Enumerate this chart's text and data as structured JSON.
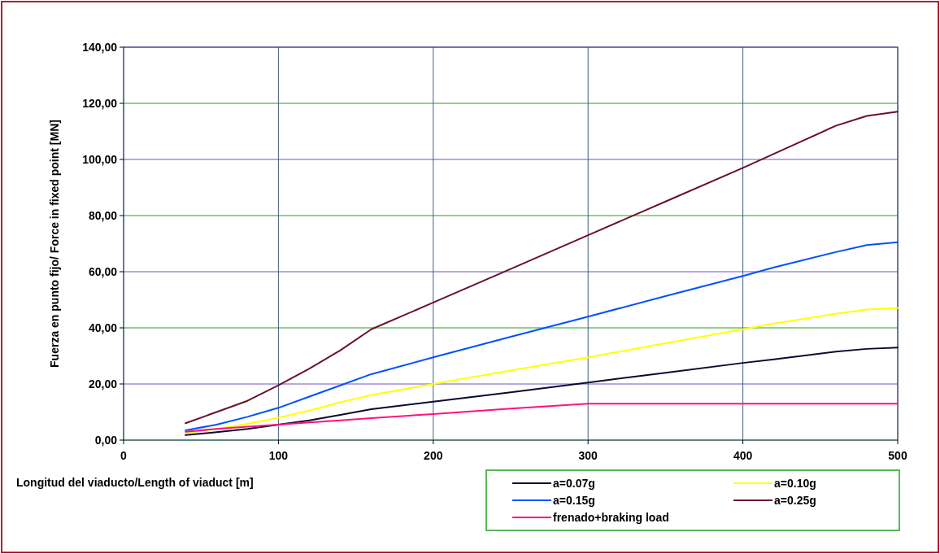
{
  "chart_data": {
    "type": "line",
    "xlabel": "Longitud del viaducto/Length of viaduct [m]",
    "ylabel": "Fuerza en punto fijo/  Force in fixed point [MN]",
    "x": [
      40,
      60,
      80,
      100,
      120,
      140,
      160,
      200,
      250,
      300,
      350,
      400,
      420,
      460,
      480,
      500
    ],
    "series": [
      {
        "name": "a=0.07g",
        "color": "#0a0a30",
        "values": [
          1.8,
          2.8,
          4,
          5.5,
          7,
          9,
          11,
          13.7,
          17,
          20.5,
          24,
          27.5,
          28.8,
          31.5,
          32.5,
          33
        ]
      },
      {
        "name": "a=0.10g",
        "color": "#ffff00",
        "values": [
          2.5,
          4,
          5.8,
          8,
          10.5,
          13.5,
          16,
          20,
          24.8,
          29.5,
          34.5,
          39.5,
          41.5,
          45,
          46.5,
          47
        ]
      },
      {
        "name": "a=0.15g",
        "color": "#0050ff",
        "values": [
          3.5,
          5.5,
          8.3,
          11.5,
          15.5,
          19.5,
          23.5,
          29.5,
          36.8,
          44,
          51.3,
          58.5,
          61.5,
          67,
          69.5,
          70.5
        ]
      },
      {
        "name": "a=0.25g",
        "color": "#6a1030",
        "values": [
          6,
          10,
          14,
          19.5,
          25.5,
          32,
          39.5,
          49,
          61,
          73,
          85,
          97,
          102,
          112,
          115.5,
          117
        ]
      },
      {
        "name": "frenado+braking load",
        "color": "#ff1080",
        "values": [
          3,
          4,
          4.8,
          5.5,
          6.3,
          7,
          7.8,
          9.3,
          11.2,
          13,
          13,
          13,
          13,
          13,
          13,
          13
        ]
      }
    ],
    "xlim": [
      0,
      500
    ],
    "xticks": [
      0,
      100,
      200,
      300,
      400,
      500
    ],
    "ylim": [
      0,
      140
    ],
    "yticks": [
      {
        "value": 0,
        "label": "0,00"
      },
      {
        "value": 20,
        "label": "20,00"
      },
      {
        "value": 40,
        "label": "40,00"
      },
      {
        "value": 60,
        "label": "60,00"
      },
      {
        "value": 80,
        "label": "80,00"
      },
      {
        "value": 100,
        "label": "100,00"
      },
      {
        "value": 120,
        "label": "120,00"
      },
      {
        "value": 140,
        "label": "140,00"
      }
    ],
    "grid": true,
    "legend": "bottom right",
    "marker": "none",
    "line_style": "solid"
  }
}
